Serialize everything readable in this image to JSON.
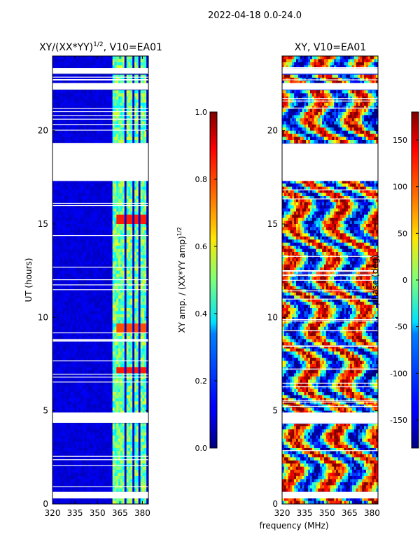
{
  "figure": {
    "suptitle": "2022-04-18 0.0-24.0",
    "shared_xlabel": "frequency (MHz)"
  },
  "chart_data": [
    {
      "type": "heatmap",
      "title": "XY/(XX*YY)",
      "title_power": "1/2",
      "title_suffix": ", V10=EA01",
      "xlabel": "",
      "ylabel": "UT (hours)",
      "xlim": [
        320,
        384
      ],
      "ylim": [
        0,
        24
      ],
      "xticks": [
        "320",
        "335",
        "350",
        "365",
        "380"
      ],
      "xtick_values": [
        320,
        335,
        350,
        365,
        380
      ],
      "yticks": [
        "0",
        "5",
        "10",
        "15",
        "20"
      ],
      "ytick_values": [
        0,
        5,
        10,
        15,
        20
      ],
      "colorbar": {
        "label": "XY amp. / (XX*YY amp)",
        "label_power": "1/2",
        "range": [
          0.0,
          1.0
        ],
        "ticks": [
          "0.0",
          "0.2",
          "0.4",
          "0.6",
          "0.8",
          "1.0"
        ],
        "tick_values": [
          0.0,
          0.2,
          0.4,
          0.6,
          0.8,
          1.0
        ]
      },
      "gaps_hours": [
        [
          0.3,
          0.65
        ],
        [
          17.3,
          19.3
        ],
        [
          4.35,
          4.9
        ],
        [
          22.2,
          22.55
        ],
        [
          23.05,
          23.35
        ]
      ],
      "bright_channels_mhz": [
        362,
        366,
        371,
        376,
        381
      ],
      "hot_spots": [
        {
          "ut": 15.25,
          "value": 0.85
        },
        {
          "ut": 9.4,
          "value": 0.8
        },
        {
          "ut": 7.2,
          "value": 0.85
        }
      ]
    },
    {
      "type": "heatmap",
      "title": "XY, V10=EA01",
      "xlabel": "",
      "ylabel": "",
      "xlim": [
        320,
        384
      ],
      "ylim": [
        0,
        24
      ],
      "xticks": [
        "320",
        "335",
        "350",
        "365",
        "380"
      ],
      "xtick_values": [
        320,
        335,
        350,
        365,
        380
      ],
      "yticks": [
        "0",
        "5",
        "10",
        "15",
        "20"
      ],
      "ytick_values": [
        0,
        5,
        10,
        15,
        20
      ],
      "colorbar": {
        "label": "phase (deg)",
        "range": [
          -180,
          180
        ],
        "ticks": [
          "-150",
          "-100",
          "-50",
          "0",
          "50",
          "100",
          "150"
        ],
        "tick_values": [
          -150,
          -100,
          -50,
          0,
          50,
          100,
          150
        ]
      },
      "gaps_hours": [
        [
          0.3,
          0.65
        ],
        [
          17.3,
          19.3
        ],
        [
          4.35,
          4.9
        ],
        [
          22.2,
          22.55
        ],
        [
          23.05,
          23.35
        ]
      ]
    }
  ]
}
